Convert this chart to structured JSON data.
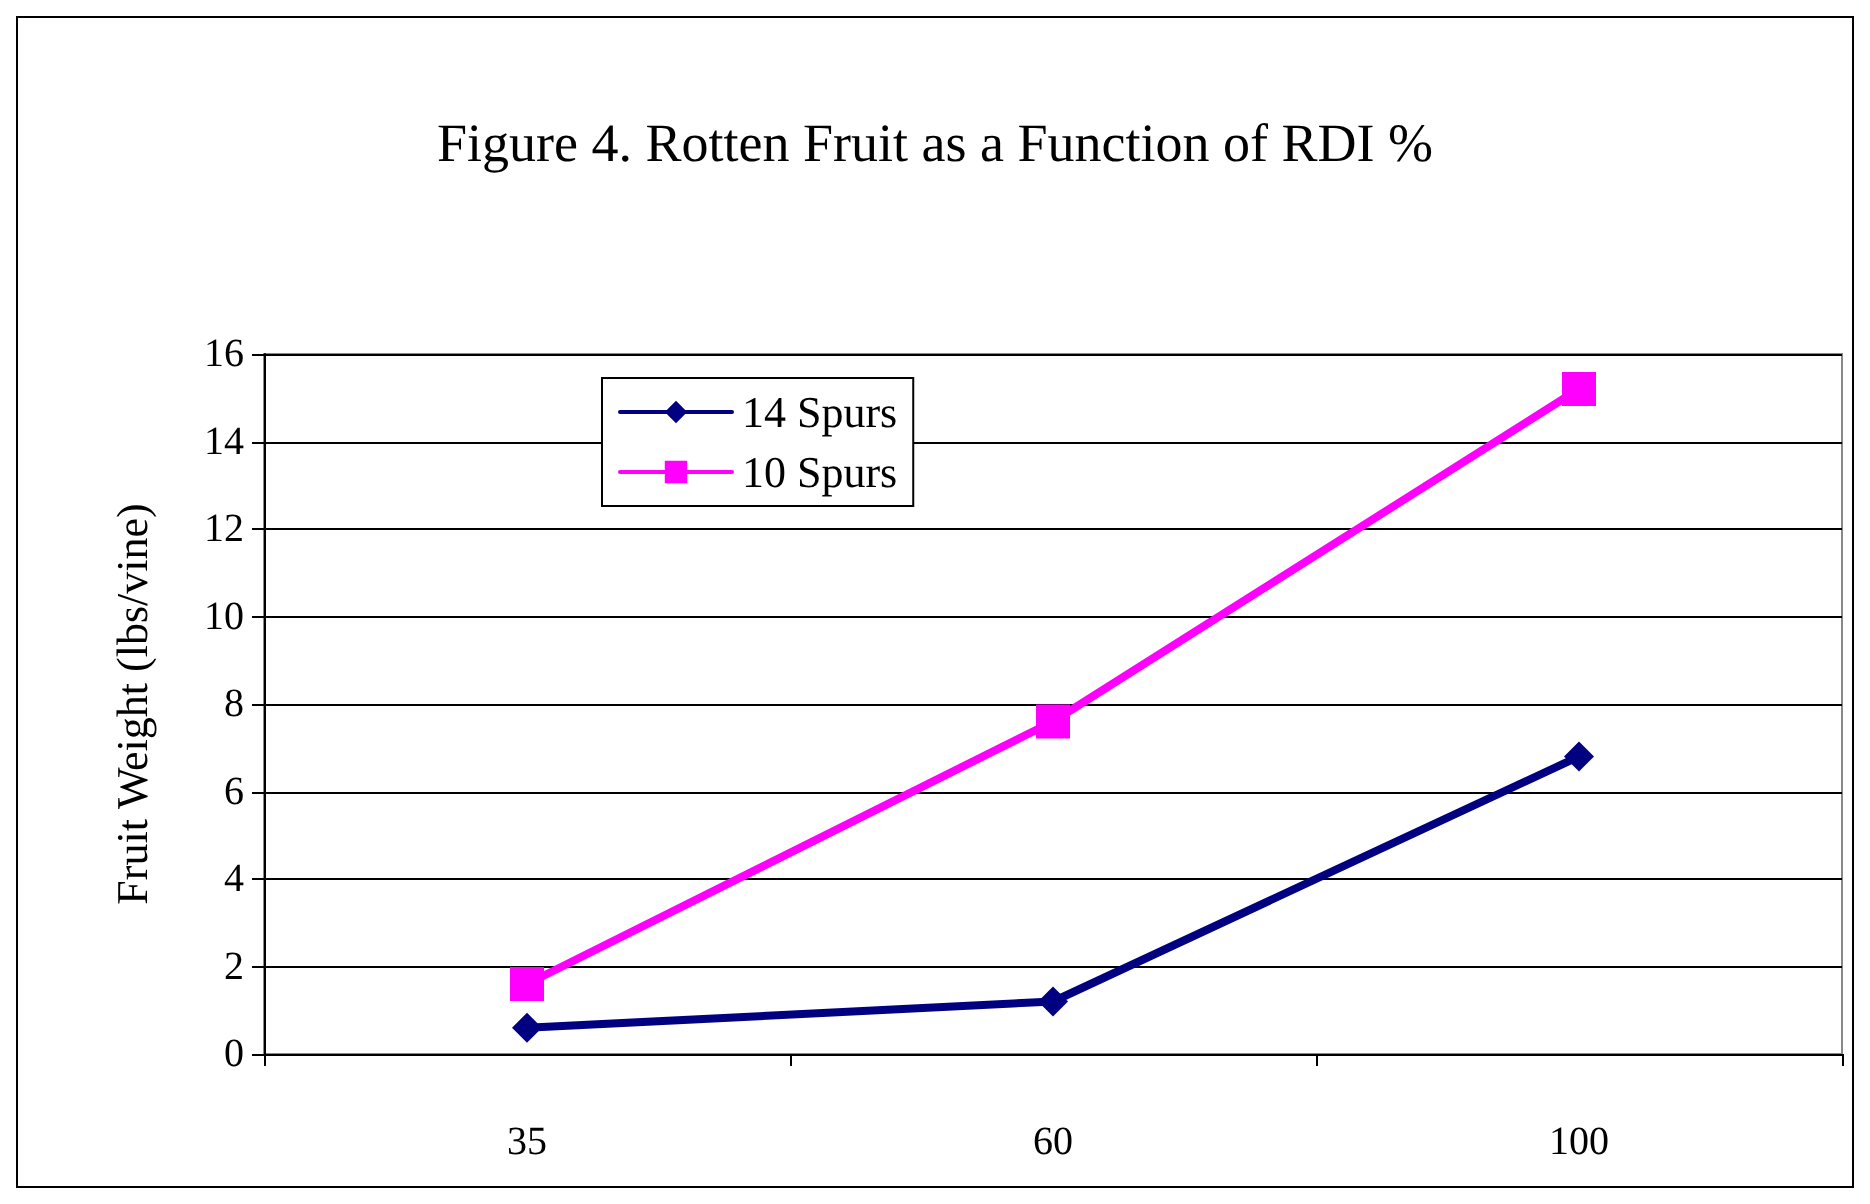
{
  "chart_data": {
    "type": "line",
    "title": "Figure 4. Rotten Fruit as a Function of RDI %",
    "ylabel": "Fruit Weight (lbs/vine)",
    "categories": [
      "35",
      "60",
      "100"
    ],
    "series": [
      {
        "name": "14 Spurs",
        "color": "#000080",
        "marker": "diamond",
        "values": [
          0.6,
          1.2,
          6.8
        ]
      },
      {
        "name": "10 Spurs",
        "color": "#ff00ff",
        "marker": "square",
        "values": [
          1.6,
          7.6,
          15.2
        ]
      }
    ],
    "ylim": [
      0,
      16
    ],
    "yticks": [
      0,
      2,
      4,
      6,
      8,
      10,
      12,
      14,
      16
    ],
    "grid": "y",
    "legend": "top left",
    "line_style": "solid"
  }
}
